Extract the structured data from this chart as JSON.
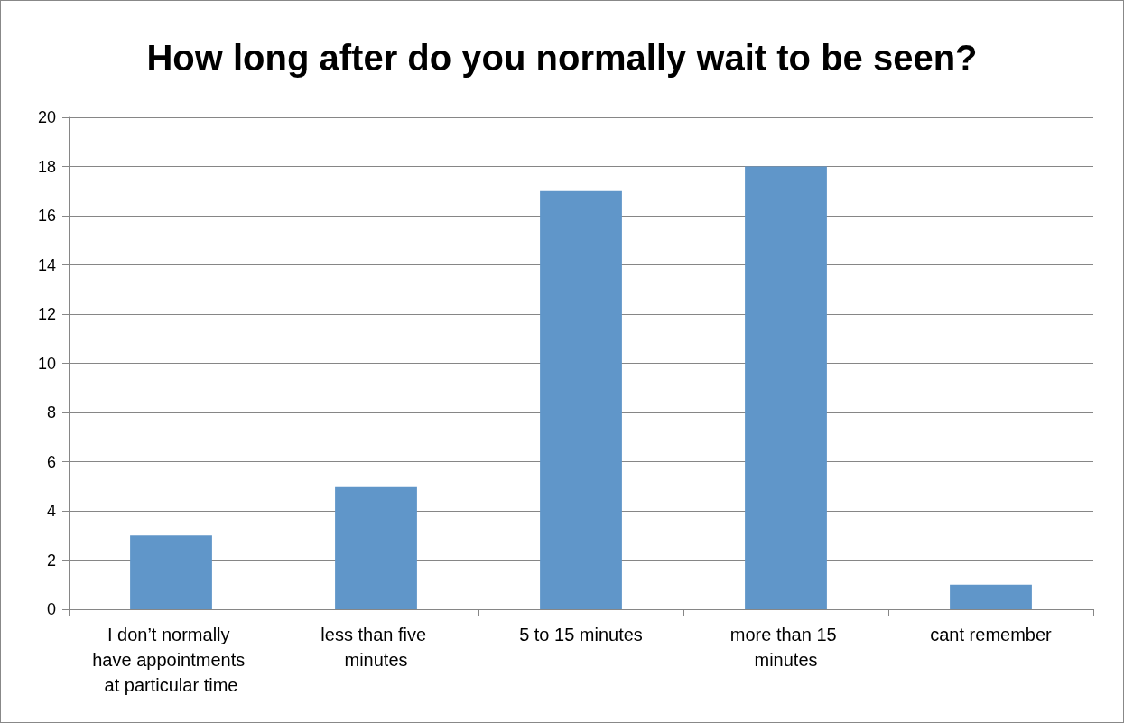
{
  "chart_data": {
    "type": "bar",
    "title": "How long after do you normally wait to be seen?",
    "categories": [
      "I don’t normally have appointments at particular time",
      "less than five minutes",
      "5 to 15 minutes",
      "more than 15 minutes",
      "cant remember"
    ],
    "values": [
      3,
      5,
      17,
      18,
      1
    ],
    "color": "#6096c9",
    "ylim": [
      0,
      20
    ],
    "yticks": [
      0,
      2,
      4,
      6,
      8,
      10,
      12,
      14,
      16,
      18,
      20
    ],
    "grid": "y"
  }
}
